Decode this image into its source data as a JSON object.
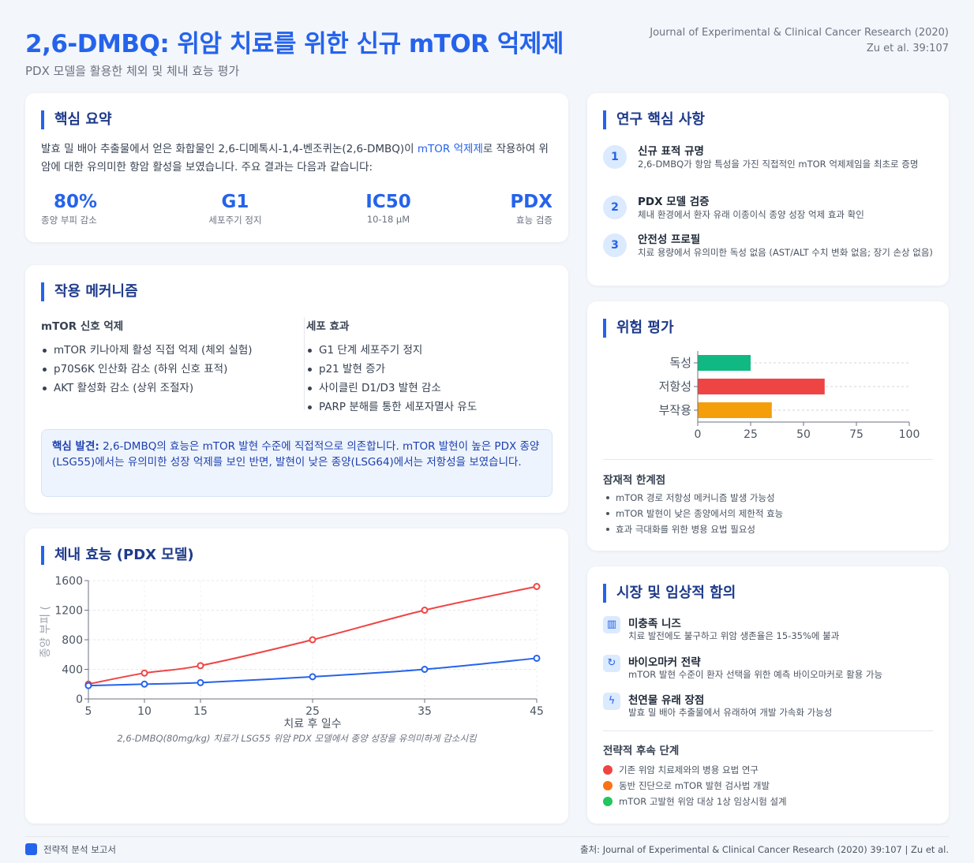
{
  "header": {
    "title": "2,6-DMBQ: 위암 치료를 위한 신규 mTOR 억제제",
    "subtitle": "PDX 모델을 활용한 체외 및 체내 효능 평가",
    "journal_line1": "Journal of Experimental & Clinical Cancer Research (2020)",
    "journal_line2": "Zu et al. 39:107"
  },
  "summary": {
    "title": "핵심 요약",
    "text_before": "발효 밀 배아 추출물에서 얻은 화합물인 2,6-디메톡시-1,4-벤조퀴논(2,6-DMBQ)이 ",
    "text_highlight": "mTOR 억제제",
    "text_after": "로 작용하여 위암에 대한 유의미한 항암 활성을 보였습니다. 주요 결과는 다음과 같습니다:",
    "stats": [
      {
        "value": "80%",
        "label": "종양 부피 감소"
      },
      {
        "value": "G1",
        "label": "세포주기 정지"
      },
      {
        "value": "IC50",
        "label": "10-18 μM"
      },
      {
        "value": "PDX",
        "label": "효능 검증"
      }
    ]
  },
  "mechanism": {
    "title": "작용 메커니즘",
    "left_head": "mTOR 신호 억제",
    "left_items": [
      "mTOR 키나아제 활성 직접 억제 (체외 실험)",
      "p70S6K 인산화 감소 (하위 신호 표적)",
      "AKT 활성화 감소 (상위 조절자)"
    ],
    "right_head": "세포 효과",
    "right_items": [
      "G1 단계 세포주기 정지",
      "p21 발현 증가",
      "사이클린 D1/D3 발현 감소",
      "PARP 분해를 통한 세포자멸사 유도"
    ],
    "finding_label": "핵심 발견:",
    "finding_text": " 2,6-DMBQ의 효능은 mTOR 발현 수준에 직접적으로 의존합니다. mTOR 발현이 높은 PDX 종양(LSG55)에서는 유의미한 성장 억제를 보인 반면, 발현이 낮은 종양(LSG64)에서는 저항성을 보였습니다."
  },
  "efficacy": {
    "title": "체내 효능 (PDX 모델)",
    "caption": "2,6-DMBQ(80mg/kg) 치료가 LSG55 위암 PDX 모델에서 종양 성장을 유의미하게 감소시킴"
  },
  "highlights": {
    "title": "연구 핵심 사항",
    "items": [
      {
        "num": "1",
        "title": "신규 표적 규명",
        "desc": "2,6-DMBQ가 항암 특성을 가진 직접적인 mTOR 억제제임을 최초로 증명"
      },
      {
        "num": "2",
        "title": "PDX 모델 검증",
        "desc": "체내 환경에서 환자 유래 이종이식 종양 성장 억제 효과 확인"
      },
      {
        "num": "3",
        "title": "안전성 프로필",
        "desc": "치료 용량에서 유의미한 독성 없음 (AST/ALT 수치 변화 없음; 장기 손상 없음)"
      }
    ]
  },
  "risk": {
    "title": "위험 평가",
    "limits_head": "잠재적 한계점",
    "limits": [
      "mTOR 경로 저항성 메커니즘 발생 가능성",
      "mTOR 발현이 낮은 종양에서의 제한적 효능",
      "효과 극대화를 위한 병용 요법 필요성"
    ]
  },
  "implications": {
    "title": "시장 및 임상적 함의",
    "items": [
      {
        "icon": "chart-icon",
        "glyph": "▥",
        "title": "미충족 니즈",
        "desc": "치료 발전에도 불구하고 위암 생존율은 15-35%에 불과"
      },
      {
        "icon": "refresh-icon",
        "glyph": "↻",
        "title": "바이오마커 전략",
        "desc": "mTOR 발현 수준이 환자 선택을 위한 예측 바이오마커로 활용 가능"
      },
      {
        "icon": "bolt-icon",
        "glyph": "ϟ",
        "title": "천연물 유래 장점",
        "desc": "발효 밀 배아 추출물에서 유래하여 개발 가속화 가능성"
      }
    ],
    "steps_head": "전략적 후속 단계",
    "steps": [
      {
        "text": "기존 위암 치료제와의 병용 요법 연구",
        "color": "#ef4444"
      },
      {
        "text": "동반 진단으로 mTOR 발현 검사법 개발",
        "color": "#f97316"
      },
      {
        "text": "mTOR 고발현 위암 대상 1상 임상시험 설계",
        "color": "#22c55e"
      }
    ]
  },
  "footer": {
    "left": "전략적 분석 보고서",
    "right": "출처: Journal of Experimental & Clinical Cancer Research (2020) 39:107 | Zu et al."
  },
  "chart_data": [
    {
      "type": "line",
      "xlabel": "치료 후 일수",
      "ylabel": "종양 부피 (",
      "categories": [
        5,
        10,
        15,
        25,
        35,
        45
      ],
      "ylim": [
        0,
        1600
      ],
      "yticks": [
        0,
        400,
        800,
        1200,
        1600
      ],
      "grid": true,
      "series": [
        {
          "values": [
            200,
            350,
            450,
            800,
            1200,
            1520
          ],
          "color": "#ef4444"
        },
        {
          "values": [
            180,
            200,
            220,
            300,
            400,
            550
          ],
          "color": "#2563eb"
        }
      ]
    },
    {
      "type": "bar",
      "orientation": "horizontal",
      "categories": [
        "독성",
        "저항성",
        "부작용"
      ],
      "values": [
        25,
        60,
        35
      ],
      "colors": [
        "#10b981",
        "#ef4444",
        "#f59e0b"
      ],
      "xlim": [
        0,
        100
      ],
      "xticks": [
        0,
        25,
        50,
        75,
        100
      ],
      "grid": true
    }
  ]
}
